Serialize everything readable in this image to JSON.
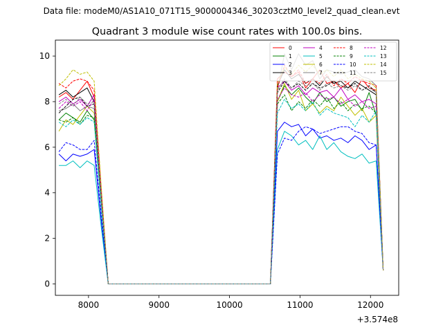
{
  "chart_data": {
    "type": "line",
    "suptitle": "Data file: modeM0/AS1A10_071T15_9000004346_30203cztM0_level2_quad_clean.evt",
    "title": "Quadrant 3 module wise count rates with 100.0s bins.",
    "xlabel": "",
    "ylabel": "",
    "x_offset_label": "+3.574e8",
    "xlim": [
      7530,
      12400
    ],
    "ylim": [
      -0.5,
      10.7
    ],
    "xticks": [
      8000,
      9000,
      10000,
      11000,
      12000
    ],
    "xtick_labels": [
      "8000",
      "9000",
      "10000",
      "11000",
      "12000"
    ],
    "yticks": [
      0,
      2,
      4,
      6,
      8,
      10
    ],
    "ytick_labels": [
      "0",
      "2",
      "4",
      "6",
      "8",
      "10"
    ],
    "x": [
      7580,
      7680,
      7780,
      7880,
      7980,
      8080,
      8180,
      8280,
      8380,
      8480,
      8580,
      8680,
      8780,
      8880,
      8980,
      9080,
      9180,
      9280,
      9380,
      9480,
      9580,
      9680,
      9780,
      9880,
      9980,
      10080,
      10180,
      10280,
      10380,
      10480,
      10580,
      10680,
      10780,
      10880,
      10980,
      11080,
      11180,
      11280,
      11380,
      11480,
      11580,
      11680,
      11780,
      11880,
      11980,
      12080,
      12180
    ],
    "series": [
      {
        "name": "0",
        "color": "#ff0000",
        "dash": false,
        "values": [
          8.2,
          8.4,
          8.1,
          8.5,
          8.9,
          8.2,
          3.9,
          0.0,
          0,
          0,
          0,
          0,
          0,
          0,
          0,
          0,
          0,
          0,
          0,
          0,
          0,
          0,
          0,
          0,
          0,
          0,
          0,
          0,
          0,
          0,
          0.0,
          9.0,
          9.3,
          9.1,
          9.3,
          8.6,
          9.0,
          9.4,
          8.8,
          8.9,
          8.6,
          8.8,
          8.4,
          9.0,
          8.6,
          8.5,
          0.6
        ]
      },
      {
        "name": "1",
        "color": "#008000",
        "dash": false,
        "values": [
          7.2,
          7.5,
          7.3,
          7.1,
          7.6,
          7.2,
          3.6,
          0.0,
          0,
          0,
          0,
          0,
          0,
          0,
          0,
          0,
          0,
          0,
          0,
          0,
          0,
          0,
          0,
          0,
          0,
          0,
          0,
          0,
          0,
          0,
          0.0,
          8.0,
          8.7,
          8.3,
          8.6,
          8.2,
          7.9,
          8.4,
          8.0,
          8.2,
          7.8,
          8.0,
          8.1,
          7.6,
          8.4,
          7.4,
          0.6
        ]
      },
      {
        "name": "2",
        "color": "#0000ff",
        "dash": false,
        "values": [
          5.7,
          5.4,
          5.7,
          5.6,
          5.7,
          5.9,
          2.8,
          0.0,
          0,
          0,
          0,
          0,
          0,
          0,
          0,
          0,
          0,
          0,
          0,
          0,
          0,
          0,
          0,
          0,
          0,
          0,
          0,
          0,
          0,
          0,
          0.0,
          6.7,
          7.1,
          6.9,
          7.0,
          6.5,
          6.8,
          6.4,
          6.5,
          6.3,
          6.4,
          6.2,
          6.5,
          6.3,
          5.9,
          6.1,
          0.6
        ]
      },
      {
        "name": "3",
        "color": "#000000",
        "dash": false,
        "values": [
          8.3,
          8.5,
          8.2,
          8.4,
          8.6,
          8.0,
          3.9,
          0.0,
          0,
          0,
          0,
          0,
          0,
          0,
          0,
          0,
          0,
          0,
          0,
          0,
          0,
          0,
          0,
          0,
          0,
          0,
          0,
          0,
          0,
          0,
          0.0,
          8.7,
          9.4,
          9.0,
          9.2,
          8.8,
          9.0,
          8.7,
          9.1,
          8.8,
          8.9,
          8.6,
          8.9,
          8.7,
          8.5,
          8.3,
          0.6
        ]
      },
      {
        "name": "4",
        "color": "#bf00bf",
        "dash": false,
        "values": [
          8.0,
          8.2,
          7.9,
          8.1,
          7.8,
          8.3,
          3.9,
          0.0,
          0,
          0,
          0,
          0,
          0,
          0,
          0,
          0,
          0,
          0,
          0,
          0,
          0,
          0,
          0,
          0,
          0,
          0,
          0,
          0,
          0,
          0,
          0.0,
          8.6,
          8.9,
          8.5,
          8.7,
          8.3,
          8.6,
          8.4,
          8.5,
          8.2,
          8.6,
          8.1,
          8.3,
          8.0,
          8.1,
          7.9,
          0.6
        ]
      },
      {
        "name": "5",
        "color": "#00bfbf",
        "dash": false,
        "values": [
          5.2,
          5.2,
          5.4,
          5.1,
          5.4,
          5.2,
          2.5,
          0.0,
          0,
          0,
          0,
          0,
          0,
          0,
          0,
          0,
          0,
          0,
          0,
          0,
          0,
          0,
          0,
          0,
          0,
          0,
          0,
          0,
          0,
          0,
          0.0,
          5.9,
          6.7,
          6.5,
          6.1,
          6.3,
          5.9,
          6.5,
          5.9,
          6.2,
          5.8,
          5.6,
          5.5,
          5.7,
          5.3,
          5.4,
          0.6
        ]
      },
      {
        "name": "6",
        "color": "#bfbf00",
        "dash": false,
        "values": [
          6.7,
          7.2,
          7.0,
          7.4,
          7.8,
          7.5,
          3.6,
          0.0,
          0,
          0,
          0,
          0,
          0,
          0,
          0,
          0,
          0,
          0,
          0,
          0,
          0,
          0,
          0,
          0,
          0,
          0,
          0,
          0,
          0,
          0,
          0.0,
          8.0,
          8.8,
          8.1,
          8.5,
          7.6,
          7.9,
          7.5,
          7.8,
          7.6,
          8.2,
          7.8,
          7.4,
          7.7,
          7.1,
          7.4,
          0.6
        ]
      },
      {
        "name": "7",
        "color": "#808080",
        "dash": false,
        "values": [
          7.6,
          7.7,
          7.9,
          7.6,
          7.8,
          7.7,
          3.7,
          0.0,
          0,
          0,
          0,
          0,
          0,
          0,
          0,
          0,
          0,
          0,
          0,
          0,
          0,
          0,
          0,
          0,
          0,
          0,
          0,
          0,
          0,
          0,
          0.0,
          8.5,
          10.1,
          9.4,
          10.1,
          9.6,
          9.8,
          9.0,
          9.4,
          9.3,
          9.2,
          9.3,
          9.4,
          9.1,
          9.0,
          8.7,
          0.6
        ]
      },
      {
        "name": "8",
        "color": "#ff0000",
        "dash": true,
        "values": [
          8.8,
          8.6,
          8.9,
          9.0,
          8.9,
          8.5,
          4.2,
          0.0,
          0,
          0,
          0,
          0,
          0,
          0,
          0,
          0,
          0,
          0,
          0,
          0,
          0,
          0,
          0,
          0,
          0,
          0,
          0,
          0,
          0,
          0,
          0.0,
          8.6,
          9.6,
          9.1,
          9.4,
          8.8,
          9.0,
          8.8,
          9.2,
          8.7,
          9.0,
          8.8,
          9.1,
          8.9,
          8.8,
          8.7,
          0.6
        ]
      },
      {
        "name": "9",
        "color": "#008000",
        "dash": true,
        "values": [
          7.2,
          7.1,
          7.3,
          7.0,
          7.4,
          7.3,
          3.5,
          0.0,
          0,
          0,
          0,
          0,
          0,
          0,
          0,
          0,
          0,
          0,
          0,
          0,
          0,
          0,
          0,
          0,
          0,
          0,
          0,
          0,
          0,
          0,
          0.0,
          7.9,
          8.3,
          7.6,
          8.0,
          7.7,
          8.1,
          7.8,
          8.2,
          7.7,
          8.0,
          7.6,
          7.9,
          7.7,
          7.8,
          7.5,
          0.6
        ]
      },
      {
        "name": "10",
        "color": "#0000ff",
        "dash": true,
        "values": [
          5.8,
          6.2,
          6.1,
          5.9,
          5.9,
          6.3,
          3.0,
          0.0,
          0,
          0,
          0,
          0,
          0,
          0,
          0,
          0,
          0,
          0,
          0,
          0,
          0,
          0,
          0,
          0,
          0,
          0,
          0,
          0,
          0,
          0,
          0.0,
          5.7,
          6.4,
          6.3,
          6.7,
          6.9,
          6.8,
          6.6,
          6.7,
          6.8,
          6.9,
          6.9,
          6.7,
          6.6,
          6.2,
          6.1,
          0.6
        ]
      },
      {
        "name": "11",
        "color": "#000000",
        "dash": true,
        "values": [
          7.5,
          7.8,
          8.1,
          8.2,
          7.8,
          7.9,
          3.8,
          0.0,
          0,
          0,
          0,
          0,
          0,
          0,
          0,
          0,
          0,
          0,
          0,
          0,
          0,
          0,
          0,
          0,
          0,
          0,
          0,
          0,
          0,
          0,
          0.0,
          8.4,
          8.9,
          8.6,
          8.8,
          8.5,
          8.8,
          8.6,
          8.7,
          8.9,
          8.7,
          8.6,
          8.8,
          8.5,
          8.7,
          8.4,
          0.6
        ]
      },
      {
        "name": "12",
        "color": "#bf00bf",
        "dash": true,
        "values": [
          7.7,
          8.0,
          7.8,
          8.0,
          7.6,
          8.1,
          3.9,
          0.0,
          0,
          0,
          0,
          0,
          0,
          0,
          0,
          0,
          0,
          0,
          0,
          0,
          0,
          0,
          0,
          0,
          0,
          0,
          0,
          0,
          0,
          0,
          0.0,
          8.1,
          8.6,
          8.3,
          8.2,
          8.4,
          8.0,
          8.3,
          8.1,
          8.2,
          7.9,
          8.1,
          7.8,
          8.0,
          7.7,
          7.8,
          0.6
        ]
      },
      {
        "name": "13",
        "color": "#00bfbf",
        "dash": true,
        "values": [
          7.1,
          6.9,
          7.2,
          7.0,
          7.3,
          7.1,
          3.4,
          0.0,
          0,
          0,
          0,
          0,
          0,
          0,
          0,
          0,
          0,
          0,
          0,
          0,
          0,
          0,
          0,
          0,
          0,
          0,
          0,
          0,
          0,
          0,
          0.0,
          7.5,
          8.1,
          7.7,
          7.9,
          7.6,
          8.0,
          7.4,
          7.7,
          7.5,
          7.4,
          7.3,
          6.9,
          7.4,
          7.1,
          7.6,
          0.6
        ]
      },
      {
        "name": "14",
        "color": "#bfbf00",
        "dash": true,
        "values": [
          8.7,
          9.0,
          9.4,
          9.2,
          9.3,
          8.9,
          4.3,
          0.0,
          0,
          0,
          0,
          0,
          0,
          0,
          0,
          0,
          0,
          0,
          0,
          0,
          0,
          0,
          0,
          0,
          0,
          0,
          0,
          0,
          0,
          0,
          0.0,
          8.8,
          9.5,
          9.2,
          9.6,
          9.3,
          9.6,
          9.2,
          9.4,
          9.1,
          9.4,
          9.0,
          9.2,
          9.0,
          8.9,
          8.6,
          0.6
        ]
      },
      {
        "name": "15",
        "color": "#808080",
        "dash": true,
        "values": [
          7.9,
          8.1,
          7.8,
          8.2,
          7.9,
          8.0,
          3.8,
          0.0,
          0,
          0,
          0,
          0,
          0,
          0,
          0,
          0,
          0,
          0,
          0,
          0,
          0,
          0,
          0,
          0,
          0,
          0,
          0,
          0,
          0,
          0,
          0.0,
          8.5,
          9.0,
          8.6,
          8.9,
          8.7,
          8.8,
          8.5,
          8.8,
          8.6,
          8.7,
          8.5,
          8.7,
          8.5,
          8.6,
          8.4,
          0.6
        ]
      }
    ]
  }
}
